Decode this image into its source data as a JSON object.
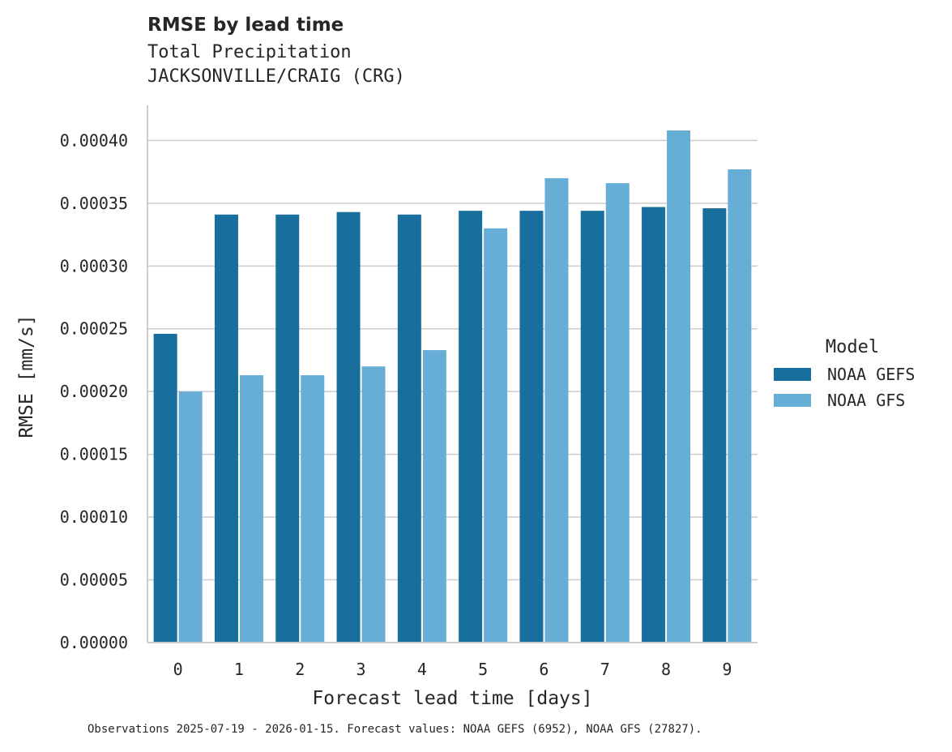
{
  "chart_data": {
    "type": "bar",
    "title": "RMSE by lead time",
    "subtitle": [
      "Total Precipitation",
      "JACKSONVILLE/CRAIG (CRG)"
    ],
    "xlabel": "Forecast lead time [days]",
    "ylabel": "RMSE [mm/s]",
    "categories": [
      "0",
      "1",
      "2",
      "3",
      "4",
      "5",
      "6",
      "7",
      "8",
      "9"
    ],
    "series": [
      {
        "name": "NOAA GEFS",
        "color": "#186e9c",
        "values": [
          0.000246,
          0.000341,
          0.000341,
          0.000343,
          0.000341,
          0.000344,
          0.000344,
          0.000344,
          0.000347,
          0.000346
        ]
      },
      {
        "name": "NOAA GFS",
        "color": "#67aed6",
        "values": [
          0.0002,
          0.000213,
          0.000213,
          0.00022,
          0.000233,
          0.00033,
          0.00037,
          0.000366,
          0.000408,
          0.000377
        ]
      }
    ],
    "ylim": [
      0,
      0.000428
    ],
    "yticks": [
      "0.00000",
      "0.00005",
      "0.00010",
      "0.00015",
      "0.00020",
      "0.00025",
      "0.00030",
      "0.00035",
      "0.00040"
    ],
    "grid": "horizontal",
    "legend": {
      "title": "Model",
      "placement": "right"
    }
  },
  "footer": "Observations 2025-07-19 - 2026-01-15. Forecast values: NOAA GEFS (6952), NOAA GFS (27827)."
}
